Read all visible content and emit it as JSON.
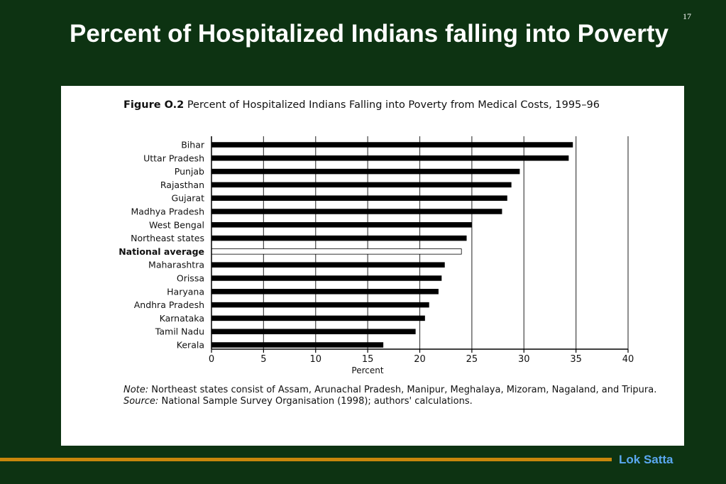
{
  "slide": {
    "title": "Percent of Hospitalized Indians falling into Poverty",
    "number": "17",
    "footer": "Lok Satta"
  },
  "figure": {
    "number": "Figure O.2",
    "caption": "Percent of Hospitalized Indians Falling into Poverty from Medical Costs, 1995–96",
    "note_label": "Note:",
    "note_text": "Northeast states consist of Assam, Arunachal Pradesh, Manipur, Meghalaya, Mizoram, Nagaland, and Tripura.",
    "source_label": "Source:",
    "source_text": "National Sample Survey Organisation (1998); authors' calculations."
  },
  "colors": {
    "background": "#0d3312",
    "bar": "#000000",
    "highlight_bar": "#ffffff",
    "footer_rule": "#c8860c",
    "footer_text": "#5aa8f0"
  },
  "chart_data": {
    "type": "bar",
    "orientation": "horizontal",
    "categories": [
      "Bihar",
      "Uttar Pradesh",
      "Punjab",
      "Rajasthan",
      "Gujarat",
      "Madhya Pradesh",
      "West Bengal",
      "Northeast states",
      "National average",
      "Maharashtra",
      "Orissa",
      "Haryana",
      "Andhra Pradesh",
      "Karnataka",
      "Tamil Nadu",
      "Kerala"
    ],
    "values": [
      34.7,
      34.3,
      29.6,
      28.8,
      28.4,
      27.9,
      25.0,
      24.5,
      24.0,
      22.4,
      22.1,
      21.8,
      20.9,
      20.5,
      19.6,
      16.5
    ],
    "highlight": "National average",
    "xlabel": "Percent",
    "ylabel": "",
    "xlim": [
      0,
      40
    ],
    "xticks": [
      "0",
      "5",
      "10",
      "15",
      "20",
      "25",
      "30",
      "35",
      "40"
    ],
    "grid": "vertical"
  }
}
